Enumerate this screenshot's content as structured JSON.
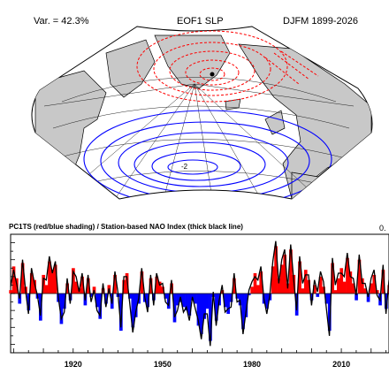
{
  "header": {
    "variance": "Var. = 42.3%",
    "title": "EOF1 SLP",
    "season": "DJFM 1899-2026"
  },
  "map": {
    "contour_label": "-2",
    "colors": {
      "land": "#c8c8c8",
      "ocean": "#ffffff",
      "positive": "#ff0000",
      "negative": "#0000ff"
    }
  },
  "chart_data": {
    "type": "area",
    "title": "PC1TS (red/blue shading) / Station-based NAO Index (thick black line)",
    "corner_text": "0.",
    "xlabel": "",
    "ylabel": "",
    "xlim": [
      1899,
      2026
    ],
    "ylim": [
      -3.5,
      3.5
    ],
    "x_ticks": [
      1920,
      1950,
      1980,
      2010
    ],
    "legend": "none",
    "series": [
      {
        "name": "PC1TS",
        "color_positive": "#ff0000",
        "color_negative": "#0000ff",
        "start": 1899,
        "step": 1,
        "values": [
          0.2,
          1.6,
          0.9,
          -0.6,
          1.8,
          0.4,
          -1.0,
          1.2,
          0.8,
          -0.3,
          -1.6,
          1.1,
          0.5,
          1.9,
          1.4,
          1.7,
          -0.5,
          -1.8,
          -0.9,
          0.6,
          -0.4,
          1.5,
          0.7,
          0.3,
          1.0,
          -0.7,
          0.9,
          -0.2,
          0.4,
          -0.8,
          -1.5,
          0.3,
          -0.6,
          0.5,
          -0.9,
          1.1,
          -0.2,
          -2.2,
          0.8,
          1.2,
          -0.3,
          -2.0,
          -1.4,
          -0.6,
          1.3,
          -0.5,
          -0.8,
          0.9,
          -0.4,
          1.0,
          0.7,
          0.4,
          -0.3,
          -0.9,
          0.6,
          -1.7,
          -0.7,
          -0.5,
          -0.8,
          -1.0,
          -1.3,
          -0.4,
          -0.6,
          -1.9,
          -2.4,
          -1.5,
          -0.9,
          -2.8,
          -0.2,
          -1.6,
          -0.7,
          0.2,
          -0.8,
          -1.2,
          -0.5,
          0.9,
          -0.3,
          -0.7,
          -2.1,
          -1.4,
          -0.1,
          0.4,
          1.2,
          0.5,
          1.3,
          -0.6,
          -0.9,
          -0.4,
          1.6,
          2.8,
          0.9,
          1.7,
          2.3,
          0.6,
          2.6,
          1.1,
          -1.3,
          1.9,
          0.3,
          1.4,
          0.8,
          -0.4,
          0.5,
          -0.2,
          1.0,
          0.4,
          -0.6,
          -2.2,
          1.8,
          0.2,
          0.9,
          1.5,
          0.7,
          2.1,
          1.3,
          0.6,
          -0.4,
          2.0,
          0.9,
          0.3,
          -0.5,
          0.6,
          1.1,
          0.2,
          -0.7,
          1.4,
          -0.9,
          0.5
        ]
      },
      {
        "name": "Station-based NAO Index",
        "color": "#000000",
        "start": 1899,
        "step": 1,
        "values": [
          0.4,
          1.4,
          0.6,
          -0.3,
          2.0,
          0.2,
          -1.2,
          1.5,
          0.6,
          -0.1,
          -1.3,
          0.9,
          0.8,
          2.2,
          1.2,
          1.9,
          -0.2,
          -1.5,
          -1.1,
          0.9,
          -0.6,
          1.3,
          1.0,
          0.1,
          1.2,
          -0.4,
          1.1,
          -0.5,
          0.2,
          -1.0,
          -1.3,
          0.6,
          -0.8,
          0.3,
          -0.6,
          1.3,
          0.1,
          -2.0,
          1.0,
          1.0,
          -0.6,
          -2.3,
          -1.1,
          -0.3,
          1.5,
          -0.2,
          -1.1,
          1.1,
          -0.7,
          1.2,
          0.5,
          0.6,
          -0.5,
          -0.7,
          0.8,
          -1.4,
          -1.0,
          -0.2,
          -1.1,
          -0.8,
          -1.6,
          -0.2,
          -0.9,
          -1.6,
          -2.7,
          -1.2,
          -1.2,
          -3.1,
          0.1,
          -1.9,
          -0.4,
          0.5,
          -1.1,
          -0.9,
          -0.8,
          1.2,
          -0.5,
          -0.4,
          -2.4,
          -1.1,
          0.2,
          0.7,
          1.0,
          0.8,
          1.6,
          -0.3,
          -1.2,
          -0.1,
          1.9,
          3.1,
          0.6,
          2.0,
          2.6,
          0.3,
          2.9,
          0.8,
          -1.0,
          2.2,
          0.6,
          1.1,
          1.1,
          -0.7,
          0.8,
          0.1,
          1.3,
          0.7,
          -0.9,
          -2.5,
          2.1,
          0.5,
          1.2,
          1.2,
          1.0,
          2.4,
          1.0,
          0.9,
          -0.1,
          2.3,
          0.6,
          0.6,
          -0.2,
          0.9,
          1.4,
          -0.1,
          -0.4,
          1.7,
          -1.2,
          0.8
        ]
      }
    ]
  }
}
